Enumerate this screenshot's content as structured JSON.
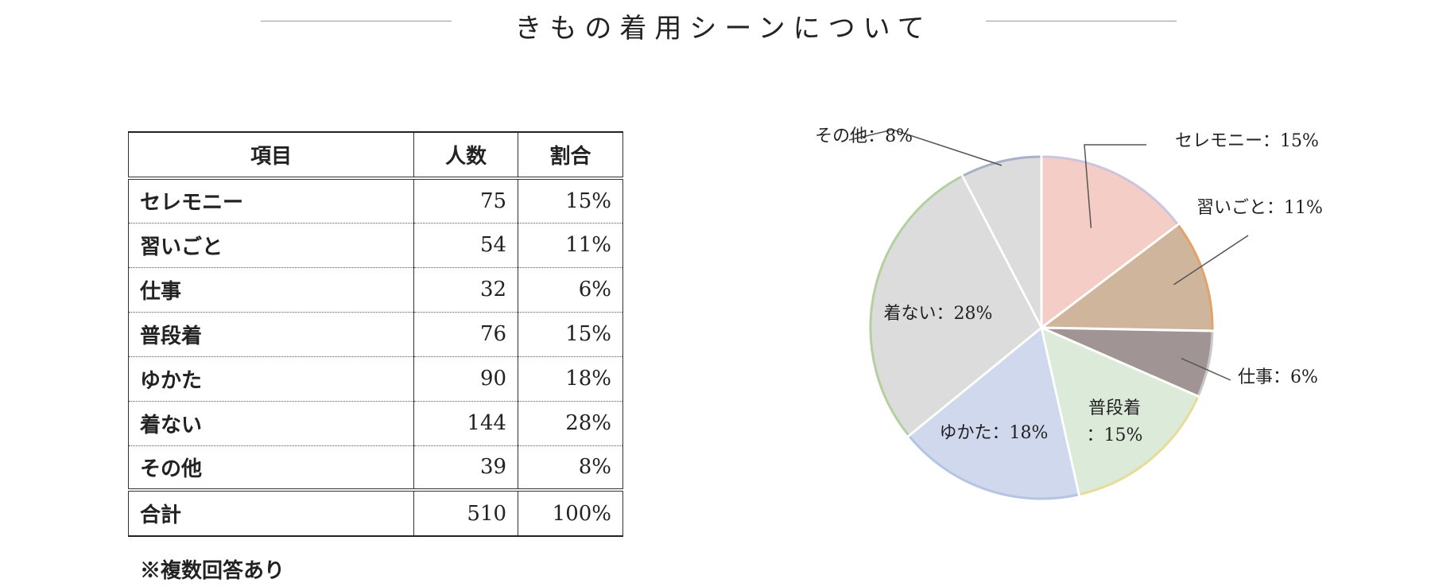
{
  "title": "きもの着用シーンについて",
  "table": {
    "headers": [
      "項目",
      "人数",
      "割合"
    ],
    "rows": [
      {
        "label": "セレモニー",
        "count": "75",
        "pct": "15%"
      },
      {
        "label": "習いごと",
        "count": "54",
        "pct": "11%"
      },
      {
        "label": "仕事",
        "count": "32",
        "pct": "6%"
      },
      {
        "label": "普段着",
        "count": "76",
        "pct": "15%"
      },
      {
        "label": "ゆかた",
        "count": "90",
        "pct": "18%"
      },
      {
        "label": "着ない",
        "count": "144",
        "pct": "28%"
      },
      {
        "label": "その他",
        "count": "39",
        "pct": "8%"
      }
    ],
    "total": {
      "label": "合計",
      "count": "510",
      "pct": "100%"
    }
  },
  "note": "※複数回答あり",
  "chart_data": {
    "type": "pie",
    "categories": [
      "セレモニー",
      "習いごと",
      "仕事",
      "普段着",
      "ゆかた",
      "着ない",
      "その他"
    ],
    "values": [
      75,
      54,
      32,
      76,
      90,
      144,
      39
    ],
    "data_labels": [
      "セレモニー：15%",
      "習いごと：11%",
      "仕事：6%",
      "普段着\n：15%",
      "ゆかた：18%",
      "着ない：28%",
      "その他：8%"
    ],
    "colors": [
      "#f4cdc6",
      "#cfb59c",
      "#a09495",
      "#dcebd9",
      "#cfd8ec",
      "#dcdcdc",
      "#dcdcdc"
    ],
    "edge_colors": [
      "#cbc4dc",
      "#e0a36a",
      "#c8c8c8",
      "#e6dc96",
      "#b4c4e4",
      "#b4d0a0",
      "#a8b0c8"
    ],
    "start_angle_deg": 0,
    "direction": "clockwise"
  }
}
